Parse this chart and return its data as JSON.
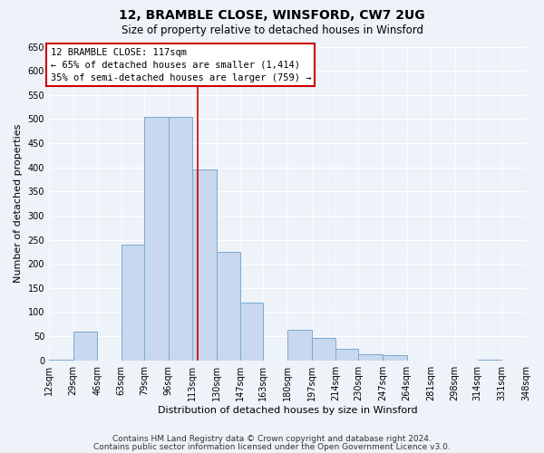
{
  "title": "12, BRAMBLE CLOSE, WINSFORD, CW7 2UG",
  "subtitle": "Size of property relative to detached houses in Winsford",
  "xlabel": "Distribution of detached houses by size in Winsford",
  "ylabel": "Number of detached properties",
  "bar_color": "#c8d8ee",
  "bar_edge_color": "#7aaad0",
  "bins": [
    12,
    29,
    46,
    63,
    79,
    96,
    113,
    130,
    147,
    163,
    180,
    197,
    214,
    230,
    247,
    264,
    281,
    298,
    314,
    331,
    348
  ],
  "counts": [
    2,
    60,
    0,
    240,
    505,
    505,
    395,
    225,
    120,
    0,
    63,
    47,
    24,
    12,
    10,
    0,
    0,
    0,
    2,
    0
  ],
  "tick_labels": [
    "12sqm",
    "29sqm",
    "46sqm",
    "63sqm",
    "79sqm",
    "96sqm",
    "113sqm",
    "130sqm",
    "147sqm",
    "163sqm",
    "180sqm",
    "197sqm",
    "214sqm",
    "230sqm",
    "247sqm",
    "264sqm",
    "281sqm",
    "298sqm",
    "314sqm",
    "331sqm",
    "348sqm"
  ],
  "property_size": 117,
  "vline_color": "#cc0000",
  "ylim": [
    0,
    650
  ],
  "yticks": [
    0,
    50,
    100,
    150,
    200,
    250,
    300,
    350,
    400,
    450,
    500,
    550,
    600,
    650
  ],
  "annotation_title": "12 BRAMBLE CLOSE: 117sqm",
  "annotation_line1": "← 65% of detached houses are smaller (1,414)",
  "annotation_line2": "35% of semi-detached houses are larger (759) →",
  "footer1": "Contains HM Land Registry data © Crown copyright and database right 2024.",
  "footer2": "Contains public sector information licensed under the Open Government Licence v3.0.",
  "background_color": "#eef2f9",
  "grid_color": "#ffffff",
  "title_fontsize": 10,
  "subtitle_fontsize": 8.5,
  "axis_label_fontsize": 8,
  "tick_fontsize": 7,
  "annotation_fontsize": 7.5,
  "footer_fontsize": 6.5
}
